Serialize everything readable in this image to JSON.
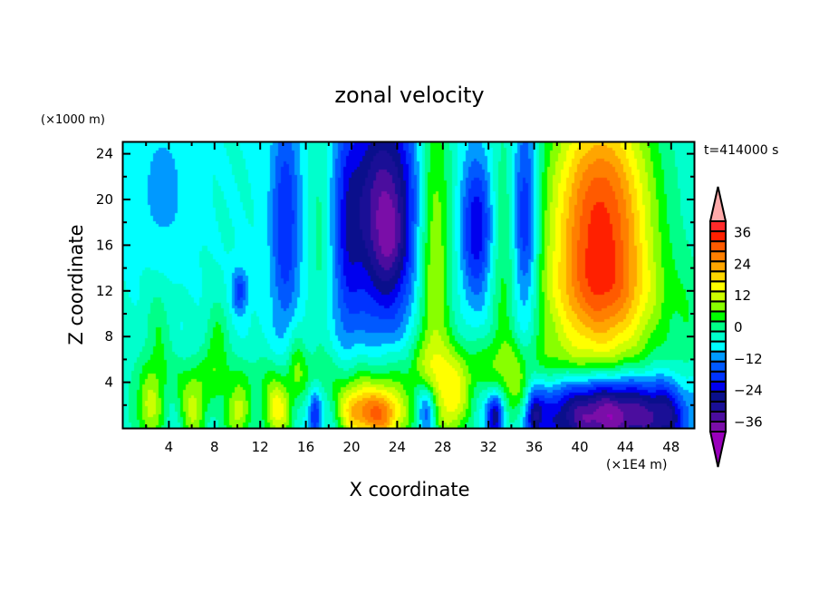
{
  "chart_data": {
    "type": "heatmap",
    "title": "zonal velocity",
    "xlabel": "X coordinate",
    "ylabel": "Z coordinate",
    "x_unit_label": "(×1E4 m)",
    "y_unit_label": "(×1000 m)",
    "time_label": "t=414000 s",
    "xlim": [
      0,
      50
    ],
    "ylim": [
      0,
      25
    ],
    "x_ticks": [
      4,
      8,
      12,
      16,
      20,
      24,
      28,
      32,
      36,
      40,
      44,
      48
    ],
    "x_tick_labels": [
      "4",
      "8",
      "12",
      "16",
      "20",
      "24",
      "28",
      "32",
      "36",
      "40",
      "44",
      "48"
    ],
    "x_minor_step": 2,
    "y_ticks": [
      4,
      8,
      12,
      16,
      20,
      24
    ],
    "y_tick_labels": [
      "4",
      "8",
      "12",
      "16",
      "20",
      "24"
    ],
    "y_minor_step": 2,
    "colorbar": {
      "levels": [
        -40,
        -36,
        -32,
        -28,
        -24,
        -20,
        -16,
        -12,
        -8,
        -4,
        0,
        4,
        8,
        12,
        16,
        20,
        24,
        28,
        32,
        36,
        40
      ],
      "colors": [
        "#7a0ea8",
        "#4b0d9e",
        "#1a0f96",
        "#0a0f8c",
        "#0000ee",
        "#0033ff",
        "#0059ff",
        "#0099ff",
        "#00ffff",
        "#00ffcc",
        "#00ff88",
        "#00ff00",
        "#88ff00",
        "#ccff00",
        "#ffff00",
        "#ffd700",
        "#ffa500",
        "#ff7f00",
        "#ff5a00",
        "#ff2000",
        "#ff2a2a"
      ],
      "over_color": "#ffaaaa",
      "under_color": "#9900bb",
      "tick_values": [
        36,
        24,
        12,
        0,
        -12,
        -24,
        -36
      ],
      "tick_labels": [
        "36",
        "24",
        "12",
        "0",
        "−12",
        "−24",
        "−36"
      ],
      "extend": "both"
    },
    "field": {
      "background": -4,
      "features": [
        {
          "x": 14.2,
          "z": 18,
          "sx": 0.9,
          "sz": 7,
          "v": -16
        },
        {
          "x": 10.2,
          "z": 12,
          "sx": 0.5,
          "sz": 1.4,
          "v": -14
        },
        {
          "x": 3.5,
          "z": 21,
          "sx": 1.5,
          "sz": 4,
          "v": -6
        },
        {
          "x": 17.2,
          "z": 17,
          "sx": 0.6,
          "sz": 7,
          "v": 6
        },
        {
          "x": 22.8,
          "z": 19,
          "sx": 2.2,
          "sz": 7,
          "v": -32
        },
        {
          "x": 23.4,
          "z": 16,
          "sx": 0.8,
          "sz": 2.5,
          "v": -6
        },
        {
          "x": 19.6,
          "z": 17,
          "sx": 0.8,
          "sz": 8,
          "v": -10
        },
        {
          "x": 27.2,
          "z": 15,
          "sx": 1.1,
          "sz": 11,
          "v": 18
        },
        {
          "x": 31,
          "z": 17.5,
          "sx": 1.0,
          "sz": 4.5,
          "v": -20
        },
        {
          "x": 33.3,
          "z": 15,
          "sx": 0.9,
          "sz": 9,
          "v": 8
        },
        {
          "x": 35.2,
          "z": 18,
          "sx": 0.8,
          "sz": 7,
          "v": -20
        },
        {
          "x": 41.8,
          "z": 18.5,
          "sx": 3.2,
          "sz": 7.5,
          "v": 40
        },
        {
          "x": 42,
          "z": 11,
          "sx": 4.2,
          "sz": 3.5,
          "v": 14
        },
        {
          "x": 42.3,
          "z": 1.2,
          "sx": 4.2,
          "sz": 2.4,
          "v": -38
        },
        {
          "x": 47.5,
          "z": 1,
          "sx": 1.2,
          "sz": 1.8,
          "v": -10
        },
        {
          "x": 41,
          "z": 6,
          "sx": 5,
          "sz": 1.5,
          "v": 4
        },
        {
          "x": 22.5,
          "z": 1.2,
          "sx": 1.6,
          "sz": 1.8,
          "v": 36
        },
        {
          "x": 20,
          "z": 1.6,
          "sx": 1.0,
          "sz": 1.8,
          "v": 18
        },
        {
          "x": 13.5,
          "z": 1.4,
          "sx": 0.9,
          "sz": 1.8,
          "v": 22
        },
        {
          "x": 10,
          "z": 1.2,
          "sx": 0.8,
          "sz": 1.7,
          "v": 18
        },
        {
          "x": 6.2,
          "z": 1.5,
          "sx": 0.9,
          "sz": 2.2,
          "v": 16
        },
        {
          "x": 2.3,
          "z": 1.4,
          "sx": 0.9,
          "sz": 2.0,
          "v": 16
        },
        {
          "x": 29,
          "z": 2.0,
          "sx": 1.0,
          "sz": 2.2,
          "v": 18
        },
        {
          "x": 34.5,
          "z": 2.4,
          "sx": 0.8,
          "sz": 2.2,
          "v": 14
        },
        {
          "x": 16.8,
          "z": 1.2,
          "sx": 0.4,
          "sz": 1.6,
          "v": -18
        },
        {
          "x": 26.6,
          "z": 1.6,
          "sx": 0.6,
          "sz": 1.8,
          "v": -18
        },
        {
          "x": 32.6,
          "z": 1.1,
          "sx": 0.5,
          "sz": 1.4,
          "v": -24
        },
        {
          "x": 36,
          "z": 1.1,
          "sx": 0.5,
          "sz": 1.4,
          "v": -16
        },
        {
          "x": 12,
          "z": 4.5,
          "sx": 12,
          "sz": 1.6,
          "v": 6
        },
        {
          "x": 30,
          "z": 5.5,
          "sx": 6,
          "sz": 2,
          "v": 8
        },
        {
          "x": 3,
          "z": 8,
          "sx": 0.8,
          "sz": 3,
          "v": 8
        },
        {
          "x": 8.2,
          "z": 7.5,
          "sx": 0.7,
          "sz": 2.5,
          "v": 10
        },
        {
          "x": 15.2,
          "z": 6,
          "sx": 0.6,
          "sz": 2.5,
          "v": 8
        },
        {
          "x": 49.5,
          "z": 8,
          "sx": 0.8,
          "sz": 5,
          "v": 4
        }
      ]
    }
  }
}
